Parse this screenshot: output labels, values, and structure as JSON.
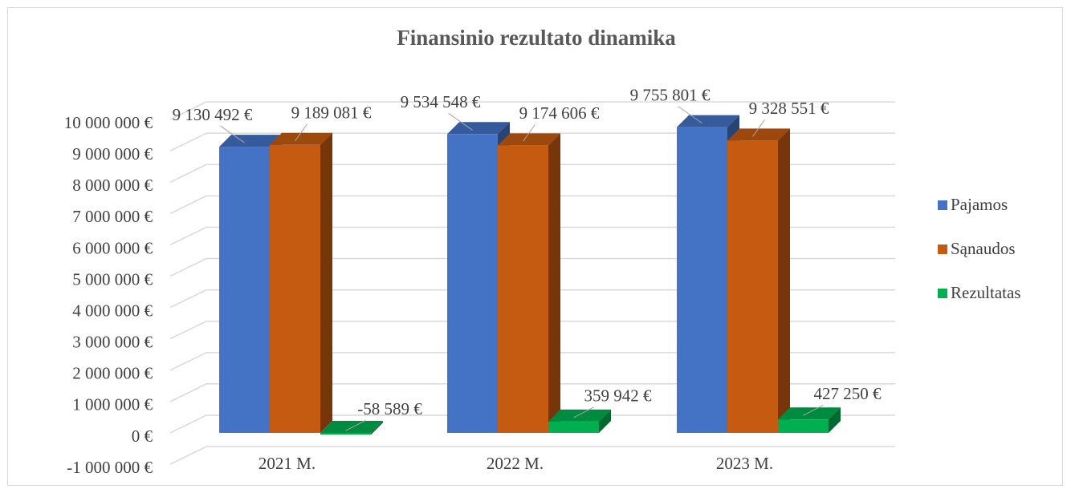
{
  "chart_data": {
    "type": "bar3d",
    "title": "Finansinio rezultato dinamika",
    "categories": [
      "2021 M.",
      "2022 M.",
      "2023 M."
    ],
    "series": [
      {
        "name": "Pajamos",
        "color": "#4472c4",
        "values": [
          9130492,
          9534548,
          9755801
        ],
        "value_labels": [
          "9 130 492 €",
          "9 534 548 €",
          "9 755 801 €"
        ]
      },
      {
        "name": "Sąnaudos",
        "color": "#c55a11",
        "values": [
          9189081,
          9174606,
          9328551
        ],
        "value_labels": [
          "9 189 081 €",
          "9 174 606 €",
          "9 328 551 €"
        ]
      },
      {
        "name": "Rezultatas",
        "color": "#00b050",
        "values": [
          -58589,
          359942,
          427250
        ],
        "value_labels": [
          "-58 589 €",
          "359 942 €",
          "427 250 €"
        ]
      }
    ],
    "ylim": [
      -1000000,
      10000000
    ],
    "yticks": [
      {
        "value": -1000000,
        "label": "-1 000 000 €"
      },
      {
        "value": 0,
        "label": "0 €"
      },
      {
        "value": 1000000,
        "label": "1 000 000 €"
      },
      {
        "value": 2000000,
        "label": "2 000 000 €"
      },
      {
        "value": 3000000,
        "label": "3 000 000 €"
      },
      {
        "value": 4000000,
        "label": "4 000 000 €"
      },
      {
        "value": 5000000,
        "label": "5 000 000 €"
      },
      {
        "value": 6000000,
        "label": "6 000 000 €"
      },
      {
        "value": 7000000,
        "label": "7 000 000 €"
      },
      {
        "value": 8000000,
        "label": "8 000 000 €"
      },
      {
        "value": 9000000,
        "label": "9 000 000 €"
      },
      {
        "value": 10000000,
        "label": "10 000 000 €"
      }
    ],
    "grid": true,
    "legend": "right"
  }
}
